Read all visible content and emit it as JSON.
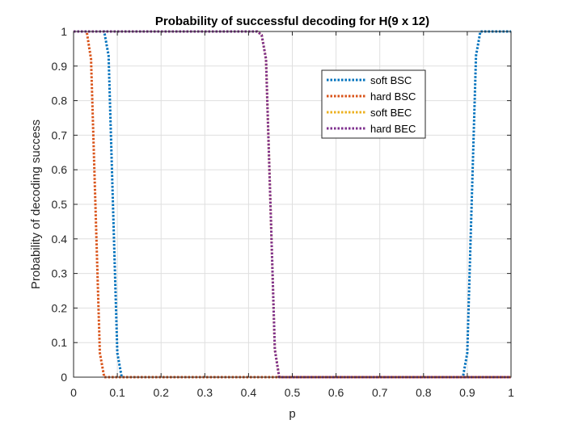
{
  "chart_data": {
    "type": "line",
    "title": "Probability of successful decoding for H(9 x 12)",
    "xlabel": "p",
    "ylabel": "Probability of decoding success",
    "xlim": [
      0,
      1
    ],
    "ylim": [
      0,
      1
    ],
    "xticks": [
      "0",
      "0.1",
      "0.2",
      "0.3",
      "0.4",
      "0.5",
      "0.6",
      "0.7",
      "0.8",
      "0.9",
      "1"
    ],
    "yticks": [
      "0",
      "0.1",
      "0.2",
      "0.3",
      "0.4",
      "0.5",
      "0.6",
      "0.7",
      "0.8",
      "0.9",
      "1"
    ],
    "grid": true,
    "legend_position": "top-right",
    "series": [
      {
        "name": "soft BSC",
        "color": "#0072BD",
        "line_style": "dotted",
        "x": [
          0,
          0.07,
          0.08,
          0.09,
          0.1,
          0.11,
          0.5,
          0.88,
          0.89,
          0.9,
          0.91,
          0.92,
          0.93,
          1
        ],
        "y": [
          1,
          1,
          0.93,
          0.5,
          0.07,
          0,
          0,
          0,
          0,
          0.07,
          0.5,
          0.93,
          1,
          1
        ]
      },
      {
        "name": "hard BSC",
        "color": "#D95319",
        "line_style": "dotted",
        "x": [
          0,
          0.03,
          0.04,
          0.05,
          0.06,
          0.07,
          1
        ],
        "y": [
          1,
          1,
          0.92,
          0.5,
          0.07,
          0,
          0
        ]
      },
      {
        "name": "soft BEC",
        "color": "#EDB120",
        "line_style": "dotted",
        "x": [
          0,
          0.42,
          0.43,
          0.44,
          0.45,
          0.46,
          0.47,
          1
        ],
        "y": [
          1,
          1,
          0.99,
          0.92,
          0.5,
          0.08,
          0,
          0
        ]
      },
      {
        "name": "hard BEC",
        "color": "#7E2F8E",
        "line_style": "dotted",
        "x": [
          0,
          0.42,
          0.43,
          0.44,
          0.45,
          0.46,
          0.47,
          1
        ],
        "y": [
          1,
          1,
          0.99,
          0.92,
          0.5,
          0.08,
          0,
          0
        ]
      }
    ]
  }
}
